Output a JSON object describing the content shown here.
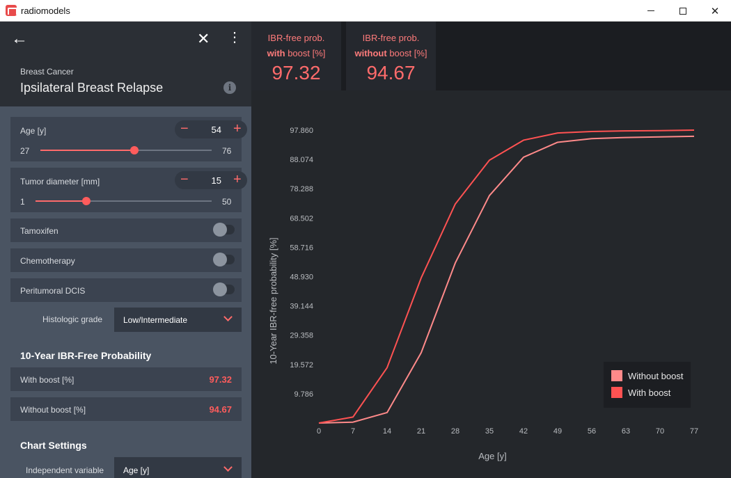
{
  "window": {
    "title": "radiomodels"
  },
  "sidebar": {
    "category": "Breast Cancer",
    "title": "Ipsilateral Breast Relapse",
    "inputs": {
      "age": {
        "label": "Age [y]",
        "value": "54",
        "min": "27",
        "max": "76",
        "fraction": 0.55
      },
      "tumor": {
        "label": "Tumor diameter [mm]",
        "value": "15",
        "min": "1",
        "max": "50",
        "fraction": 0.29
      },
      "tamoxifen": {
        "label": "Tamoxifen",
        "on": false
      },
      "chemotherapy": {
        "label": "Chemotherapy",
        "on": false
      },
      "dcis": {
        "label": "Peritumoral DCIS",
        "on": false
      },
      "grade": {
        "label": "Histologic grade",
        "value": "Low/Intermediate"
      }
    },
    "results": {
      "title": "10-Year IBR-Free Probability",
      "with_label": "With boost [%]",
      "with_value": "97.32",
      "without_label": "Without boost [%]",
      "without_value": "94.67"
    },
    "chart_settings": {
      "title": "Chart Settings",
      "indep_label": "Independent variable",
      "indep_value": "Age [y]"
    }
  },
  "kpis": [
    {
      "line1": "IBR-free prob.",
      "bold": "with",
      "rest": " boost [%]",
      "value": "97.32"
    },
    {
      "line1": "IBR-free prob.",
      "bold": "without",
      "rest": " boost [%]",
      "value": "94.67"
    }
  ],
  "colors": {
    "accent": "#ff6b6b",
    "without": "#ff8a8a",
    "with": "#ff5252"
  },
  "chart_data": {
    "type": "line",
    "xlabel": "Age [y]",
    "ylabel": "10-Year IBR-free probability [%]",
    "xticks": [
      "0",
      "7",
      "14",
      "21",
      "28",
      "35",
      "42",
      "49",
      "56",
      "63",
      "70",
      "77"
    ],
    "yticks": [
      "9.786",
      "19.572",
      "29.358",
      "39.144",
      "48.930",
      "58.716",
      "68.502",
      "78.288",
      "88.074",
      "97.860"
    ],
    "xlim": [
      0,
      77
    ],
    "ylim": [
      0,
      97.86
    ],
    "legend_position": "bottom-right",
    "x": [
      0,
      7,
      14,
      21,
      28,
      35,
      42,
      49,
      56,
      63,
      70,
      77
    ],
    "series": [
      {
        "name": "Without boost",
        "values": [
          0,
          0.3,
          3.5,
          23.5,
          53.5,
          76,
          88.8,
          93.8,
          95.0,
          95.4,
          95.6,
          95.8
        ],
        "color": "#ff8a8a"
      },
      {
        "name": "With boost",
        "values": [
          0,
          2.0,
          18.5,
          48.5,
          73.2,
          87.8,
          94.5,
          96.9,
          97.4,
          97.6,
          97.7,
          97.86
        ],
        "color": "#ff5252"
      }
    ]
  }
}
